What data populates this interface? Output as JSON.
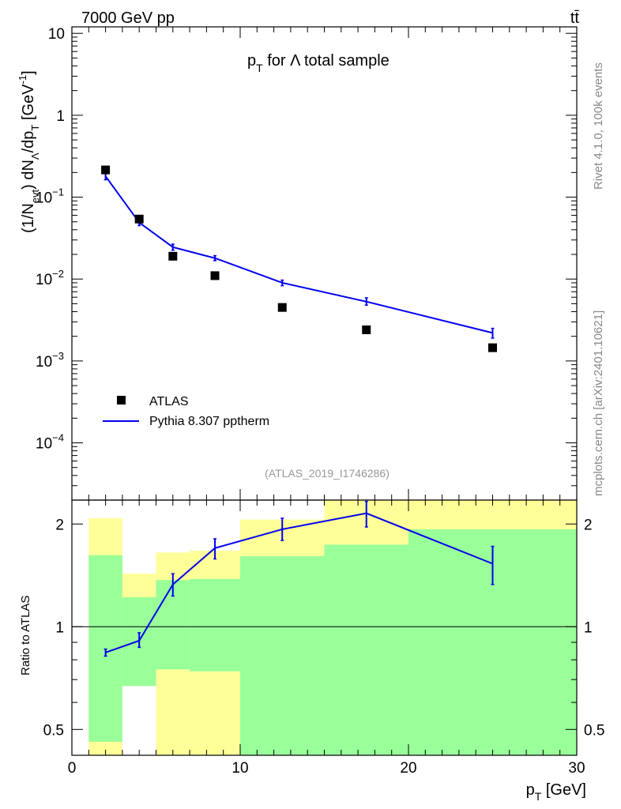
{
  "header": {
    "energy_label": "7000 GeV pp",
    "process_label": "tt̄",
    "analysis_id": "(ATLAS_2019_I1746286)",
    "side_label_top": "Rivet 4.1.0,  100k events",
    "side_label_bottom": "mcplots.cern.ch [arXiv:2401.10621]"
  },
  "colors": {
    "mc_line": "#0000ee",
    "data_marker": "#000000",
    "band_inner": "#99ff99",
    "band_outer": "#ffff99"
  },
  "chart_data": [
    {
      "type": "scatter",
      "panel": "main",
      "title_parts": {
        "p": "p",
        "sub": "T",
        "rest": " for Λ total sample"
      },
      "ylabel_parts": [
        "(1/N",
        "evt",
        ") dN",
        "Λ",
        "/dp",
        "T",
        " [GeV",
        "-1",
        "]"
      ],
      "yscale": "log",
      "ylim": [
        2e-05,
        12
      ],
      "xlim": [
        0,
        30
      ],
      "ytick_labels": [
        {
          "v": 10,
          "base": "10",
          "exp": ""
        },
        {
          "v": 1,
          "base": "1",
          "exp": ""
        },
        {
          "v": 0.1,
          "base": "10",
          "exp": "−1"
        },
        {
          "v": 0.01,
          "base": "10",
          "exp": "−2"
        },
        {
          "v": 0.001,
          "base": "10",
          "exp": "−3"
        },
        {
          "v": 0.0001,
          "base": "10",
          "exp": "−4"
        }
      ],
      "legend": {
        "position": "bottom-left",
        "entries": [
          "ATLAS",
          "Pythia 8.307 pptherm"
        ]
      },
      "series": [
        {
          "name": "ATLAS",
          "style": "markers",
          "x": [
            2,
            4,
            6,
            8.5,
            12.5,
            17.5,
            25
          ],
          "y": [
            0.215,
            0.054,
            0.019,
            0.011,
            0.0045,
            0.0024,
            0.00145
          ]
        },
        {
          "name": "Pythia 8.307 pptherm",
          "style": "line",
          "x": [
            2,
            4,
            6,
            8.5,
            12.5,
            17.5,
            25
          ],
          "y": [
            0.18,
            0.049,
            0.0245,
            0.018,
            0.009,
            0.0053,
            0.0022
          ],
          "yerr_low": [
            0.163,
            0.045,
            0.0225,
            0.0168,
            0.0083,
            0.0048,
            0.0019
          ],
          "yerr_high": [
            0.197,
            0.053,
            0.0267,
            0.0193,
            0.0097,
            0.0059,
            0.0025
          ]
        }
      ]
    },
    {
      "type": "line",
      "panel": "ratio",
      "ylabel": "Ratio to ATLAS",
      "xlabel_parts": {
        "p": "p",
        "sub": "T",
        "rest": " [GeV]"
      },
      "yscale": "log",
      "ylim": [
        0.42,
        2.35
      ],
      "xlim": [
        0,
        30
      ],
      "ytick_labels": [
        {
          "v": 0.5,
          "label": "0.5"
        },
        {
          "v": 1,
          "label": "1"
        },
        {
          "v": 2,
          "label": "2"
        }
      ],
      "xtick_labels": [
        {
          "v": 0,
          "label": "0"
        },
        {
          "v": 10,
          "label": "10"
        },
        {
          "v": 20,
          "label": "20"
        },
        {
          "v": 30,
          "label": "30"
        }
      ],
      "bands": [
        {
          "x0": 1,
          "x1": 3,
          "outer": [
            0.0,
            2.08
          ],
          "inner": [
            0.46,
            1.62
          ]
        },
        {
          "x0": 3,
          "x1": 5,
          "outer": [
            0.0,
            1.43
          ],
          "inner": [
            0.67,
            1.22
          ]
        },
        {
          "x0": 5,
          "x1": 7,
          "outer": [
            0.0,
            1.65
          ],
          "inner": [
            0.75,
            1.37
          ]
        },
        {
          "x0": 7,
          "x1": 10,
          "outer": [
            0.0,
            1.67
          ],
          "inner": [
            0.74,
            1.38
          ]
        },
        {
          "x0": 10,
          "x1": 15,
          "outer": [
            0.0,
            2.06
          ],
          "inner": [
            0.0,
            1.61
          ]
        },
        {
          "x0": 15,
          "x1": 20,
          "outer": [
            0.0,
            2.35
          ],
          "inner": [
            0.0,
            1.74
          ]
        },
        {
          "x0": 20,
          "x1": 30,
          "outer": [
            0.0,
            2.35
          ],
          "inner": [
            0.0,
            1.93
          ]
        }
      ],
      "white_gap": {
        "x0": 3,
        "x1": 5,
        "y1": 0.67
      },
      "series": [
        {
          "name": "Pythia 8.307 pptherm / ATLAS",
          "x": [
            2,
            4,
            6,
            8.5,
            12.5,
            17.5,
            25
          ],
          "y": [
            0.84,
            0.91,
            1.33,
            1.7,
            1.93,
            2.15,
            1.53
          ],
          "yerr_low": [
            0.82,
            0.87,
            1.23,
            1.58,
            1.79,
            1.96,
            1.33
          ],
          "yerr_high": [
            0.86,
            0.96,
            1.43,
            1.81,
            2.08,
            2.33,
            1.72
          ]
        }
      ]
    }
  ]
}
